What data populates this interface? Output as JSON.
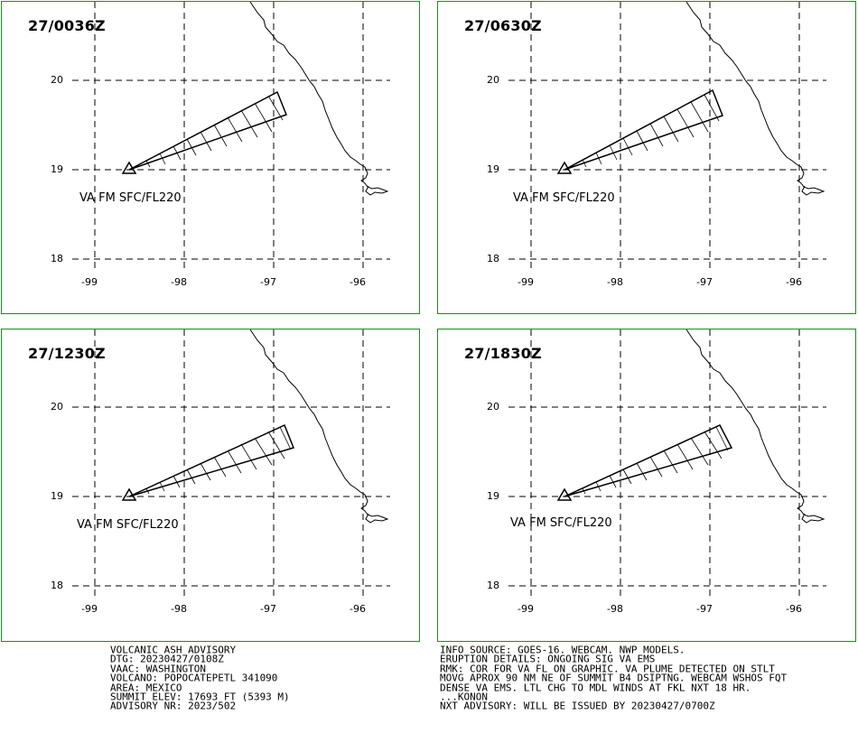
{
  "panels": [
    {
      "time": "27/0036Z",
      "label": "VA FM SFC/FL220"
    },
    {
      "time": "27/0630Z",
      "label": "VA FM SFC/FL220"
    },
    {
      "time": "27/1230Z",
      "label": "VA FM SFC/FL220"
    },
    {
      "time": "27/1830Z",
      "label": "VA FM SFC/FL220"
    }
  ],
  "lat_ticks": [
    "20",
    "19",
    "18"
  ],
  "lon_ticks": [
    "-99",
    "-98",
    "-97",
    "-96"
  ],
  "colors": {
    "frame": "#1f8a1f",
    "lines": "#000000",
    "background": "#ffffff"
  },
  "advisory_left": [
    "VOLCANIC ASH ADVISORY",
    "DTG: 20230427/0108Z",
    "VAAC: WASHINGTON",
    "VOLCANO: POPOCATEPETL 341090",
    "AREA: MEXICO",
    "SUMMIT ELEV: 17693 FT (5393 M)",
    "ADVISORY NR: 2023/502"
  ],
  "advisory_right": [
    "INFO SOURCE: GOES-16. WEBCAM. NWP MODELS.",
    "ERUPTION DETAILS: ONGOING SIG VA EMS",
    "RMK: COR FOR VA FL ON GRAPHIC. VA PLUME DETECTED ON STLT",
    "MOVG APROX 90 NM NE OF SUMMIT B4 DSIPTNG. WEBCAM WSHOS FQT",
    "DENSE VA EMS. LTL CHG TO MDL WINDS AT FKL NXT 18 HR.",
    "...KONON",
    "NXT ADVISORY: WILL BE ISSUED BY 20230427/0700Z"
  ]
}
